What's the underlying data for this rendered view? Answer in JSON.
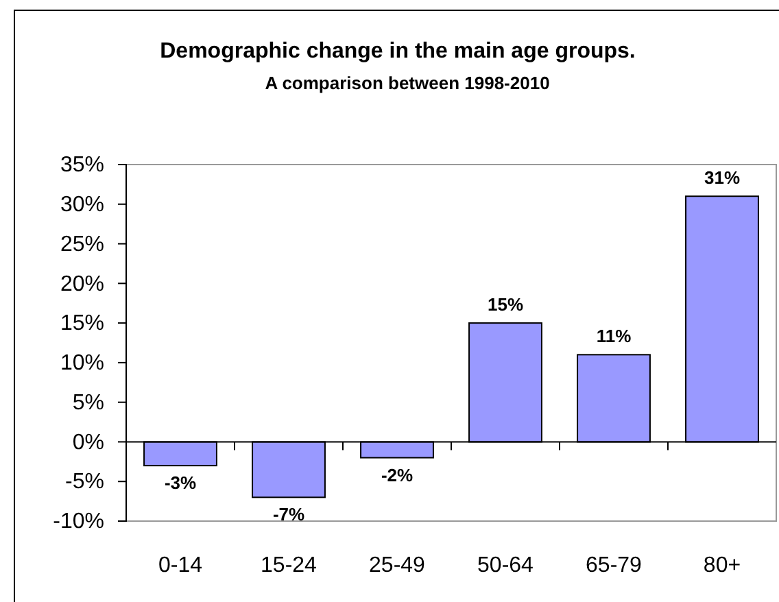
{
  "chart_data": {
    "type": "bar",
    "title": "Demographic change in the main age groups.",
    "subtitle": "A comparison between  1998-2010",
    "categories": [
      "0-14",
      "15-24",
      "25-49",
      "50-64",
      "65-79",
      "80+"
    ],
    "values": [
      -3,
      -7,
      -2,
      15,
      11,
      31
    ],
    "value_labels": [
      "-3%",
      "-7%",
      "-2%",
      "15%",
      "11%",
      "31%"
    ],
    "color": "#9999ff",
    "ylim": [
      -10,
      35
    ],
    "yticks": [
      {
        "value": -10,
        "label": "-10%"
      },
      {
        "value": -5,
        "label": "-5%"
      },
      {
        "value": 0,
        "label": "0%"
      },
      {
        "value": 5,
        "label": "5%"
      },
      {
        "value": 10,
        "label": "10%"
      },
      {
        "value": 15,
        "label": "15%"
      },
      {
        "value": 20,
        "label": "20%"
      },
      {
        "value": 25,
        "label": "25%"
      },
      {
        "value": 30,
        "label": "30%"
      },
      {
        "value": 35,
        "label": "35%"
      }
    ],
    "legend": false
  }
}
